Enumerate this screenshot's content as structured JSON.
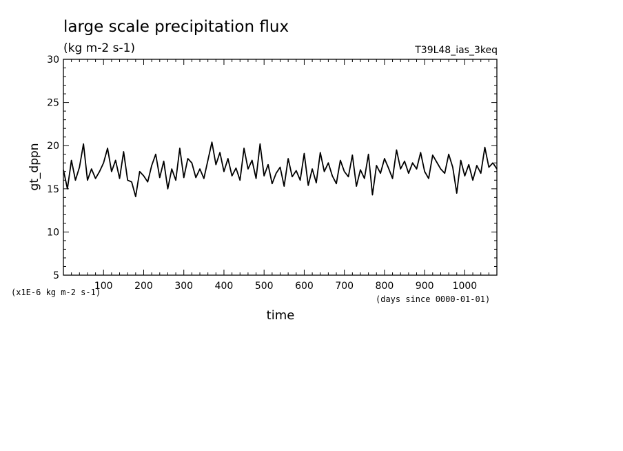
{
  "header": {
    "title": "large scale precipitation flux",
    "units": "(kg m-2 s-1)",
    "run_name": "T39L48_ias_3keq"
  },
  "axes": {
    "xlabel": "time",
    "x_units": "(days since 0000-01-01)",
    "ylabel": "gt_dppn",
    "y_scale_note": "(x1E-6 kg m-2 s-1)",
    "x_tick_labels": [
      "100",
      "200",
      "300",
      "400",
      "500",
      "600",
      "700",
      "800",
      "900",
      "1000"
    ],
    "y_tick_labels": [
      "5",
      "10",
      "15",
      "20",
      "25",
      "30"
    ]
  },
  "chart_data": {
    "type": "line",
    "title": "large scale precipitation flux",
    "xlabel": "time",
    "ylabel": "gt_dppn",
    "xlim": [
      0,
      1080
    ],
    "ylim": [
      5,
      30
    ],
    "grid": false,
    "x_ticks": [
      100,
      200,
      300,
      400,
      500,
      600,
      700,
      800,
      900,
      1000
    ],
    "y_ticks": [
      5,
      10,
      15,
      20,
      25,
      30
    ],
    "series": [
      {
        "x": [
          0,
          10,
          20,
          30,
          40,
          50,
          60,
          70,
          80,
          90,
          100,
          110,
          120,
          130,
          140,
          150,
          160,
          170,
          180,
          190,
          200,
          210,
          220,
          230,
          240,
          250,
          260,
          270,
          280,
          290,
          300,
          310,
          320,
          330,
          340,
          350,
          360,
          370,
          380,
          390,
          400,
          410,
          420,
          430,
          440,
          450,
          460,
          470,
          480,
          490,
          500,
          510,
          520,
          530,
          540,
          550,
          560,
          570,
          580,
          590,
          600,
          610,
          620,
          630,
          640,
          650,
          660,
          670,
          680,
          690,
          700,
          710,
          720,
          730,
          740,
          750,
          760,
          770,
          780,
          790,
          800,
          810,
          820,
          830,
          840,
          850,
          860,
          870,
          880,
          890,
          900,
          910,
          920,
          930,
          940,
          950,
          960,
          970,
          980,
          990,
          1000,
          1010,
          1020,
          1030,
          1040,
          1050,
          1060,
          1070,
          1080
        ],
        "values": [
          17.2,
          15.0,
          18.3,
          16.0,
          17.5,
          20.2,
          16.0,
          17.3,
          16.2,
          17.0,
          18.0,
          19.7,
          17.0,
          18.3,
          16.2,
          19.3,
          16.0,
          15.8,
          14.1,
          17.0,
          16.5,
          15.8,
          17.7,
          19.0,
          16.3,
          18.2,
          15.0,
          17.3,
          16.0,
          19.7,
          16.3,
          18.5,
          18.0,
          16.3,
          17.3,
          16.2,
          18.3,
          20.4,
          17.8,
          19.2,
          17.0,
          18.5,
          16.5,
          17.4,
          16.0,
          19.7,
          17.3,
          18.3,
          16.2,
          20.2,
          16.5,
          17.8,
          15.6,
          16.8,
          17.5,
          15.3,
          18.5,
          16.4,
          17.1,
          16.0,
          19.1,
          15.4,
          17.3,
          15.7,
          19.2,
          17.0,
          18.0,
          16.5,
          15.6,
          18.3,
          17.0,
          16.4,
          18.9,
          15.3,
          17.2,
          16.2,
          19.0,
          14.3,
          17.7,
          16.8,
          18.5,
          17.4,
          16.2,
          19.5,
          17.3,
          18.2,
          16.8,
          18.0,
          17.3,
          19.2,
          17.0,
          16.2,
          18.9,
          18.1,
          17.3,
          16.8,
          19.0,
          17.5,
          14.5,
          18.3,
          16.5,
          17.8,
          16.0,
          17.7,
          16.8,
          19.8,
          17.5,
          18.0,
          17.3
        ]
      }
    ]
  }
}
